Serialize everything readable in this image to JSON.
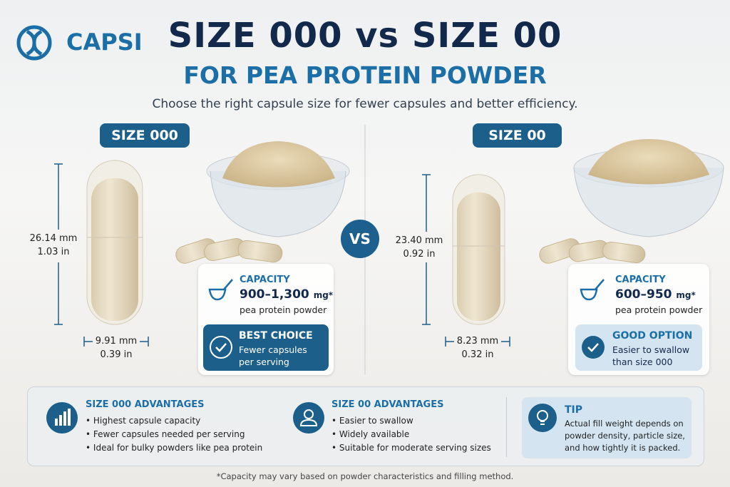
{
  "brand": "CAPSI",
  "title": "SIZE 000 vs SIZE 00",
  "subtitle": "FOR PEA PROTEIN POWDER",
  "tagline": "Choose the right capsule size for fewer capsules and better efficiency.",
  "vs": "VS",
  "sizes": [
    {
      "label": "SIZE 000",
      "length_mm": "26.14 mm",
      "length_in": "1.03 in",
      "width_mm": "9.91 mm",
      "width_in": "0.39 in",
      "capacity_title": "CAPACITY",
      "capacity_value": "900–1,300",
      "capacity_unit": "mg*",
      "capacity_note": "pea protein powder",
      "badge_title": "BEST CHOICE",
      "badge_text": "Fewer capsules per serving"
    },
    {
      "label": "SIZE 00",
      "length_mm": "23.40 mm",
      "length_in": "0.92 in",
      "width_mm": "8.23 mm",
      "width_in": "0.32 in",
      "capacity_title": "CAPACITY",
      "capacity_value": "600–950",
      "capacity_unit": "mg*",
      "capacity_note": "pea protein powder",
      "badge_title": "GOOD OPTION",
      "badge_text": "Easier to swallow than size 000"
    }
  ],
  "advantages": [
    {
      "title": "SIZE 000 ADVANTAGES",
      "items": [
        "Highest capsule capacity",
        "Fewer capsules needed per serving",
        "Ideal for bulky powders like pea protein"
      ]
    },
    {
      "title": "SIZE 00 ADVANTAGES",
      "items": [
        "Easier to swallow",
        "Widely available",
        "Suitable for moderate serving sizes"
      ]
    }
  ],
  "tip": {
    "title": "TIP",
    "text": "Actual fill weight depends on powder density, particle size, and how tightly it is packed."
  },
  "footnote": "*Capacity may vary based on powder characteristics and filling method."
}
